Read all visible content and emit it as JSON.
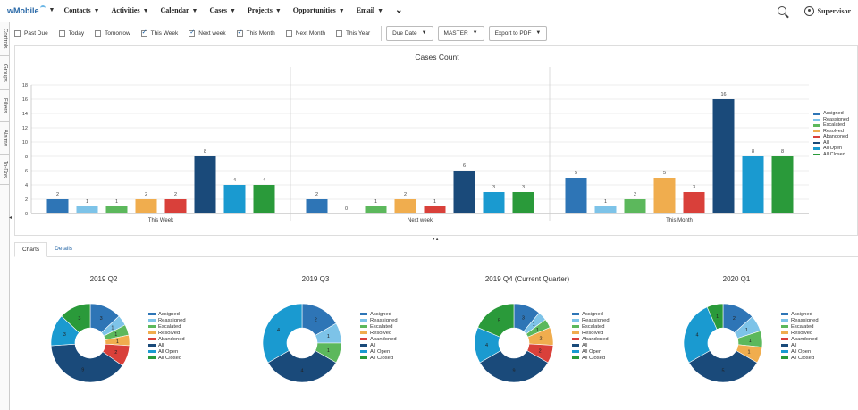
{
  "app": {
    "logo": "wMobile",
    "user": "Supervisor"
  },
  "nav": [
    "Contacts",
    "Activities",
    "Calendar",
    "Cases",
    "Projects",
    "Opportunities",
    "Email"
  ],
  "left_tabs": [
    "Controls",
    "Groups",
    "Filters",
    "Alarms",
    "To-Dos"
  ],
  "filters": [
    {
      "label": "Past Due",
      "checked": false
    },
    {
      "label": "Today",
      "checked": false
    },
    {
      "label": "Tomorrow",
      "checked": false
    },
    {
      "label": "This Week",
      "checked": true
    },
    {
      "label": "Next week",
      "checked": true
    },
    {
      "label": "This Month",
      "checked": true
    },
    {
      "label": "Next Month",
      "checked": false
    },
    {
      "label": "This Year",
      "checked": false
    }
  ],
  "dropdowns": {
    "date": "Due Date",
    "master": "MASTER",
    "export": "Export to PDF"
  },
  "colors": {
    "Assigned": "#2e75b6",
    "Reassigned": "#7dc3e8",
    "Escalated": "#5cb85c",
    "Resolved": "#f0ad4e",
    "Abandoned": "#d9403a",
    "All": "#1a4a7a",
    "All Open": "#1a9ad0",
    "All Closed": "#2a9a3a"
  },
  "legend_items": [
    "Assigned",
    "Reassigned",
    "Escalated",
    "Resolved",
    "Abandoned",
    "All",
    "All Open",
    "All Closed"
  ],
  "chart_data": {
    "type": "bar",
    "title": "Cases Count",
    "categories": [
      "This Week",
      "Next week",
      "This Month"
    ],
    "series": [
      {
        "name": "Assigned",
        "values": [
          2,
          2,
          5
        ]
      },
      {
        "name": "Reassigned",
        "values": [
          1,
          0,
          1
        ]
      },
      {
        "name": "Escalated",
        "values": [
          1,
          1,
          2
        ]
      },
      {
        "name": "Resolved",
        "values": [
          2,
          2,
          5
        ]
      },
      {
        "name": "Abandoned",
        "values": [
          2,
          1,
          3
        ]
      },
      {
        "name": "All",
        "values": [
          8,
          6,
          16
        ]
      },
      {
        "name": "All Open",
        "values": [
          4,
          3,
          8
        ]
      },
      {
        "name": "All Closed",
        "values": [
          4,
          3,
          8
        ]
      }
    ],
    "ylim": [
      0,
      18
    ],
    "yticks": [
      0,
      2,
      4,
      6,
      8,
      10,
      12,
      14,
      16,
      18
    ],
    "grid": true,
    "legend": "right"
  },
  "tabs": [
    "Charts",
    "Details"
  ],
  "pies": [
    {
      "title": "2019 Q2",
      "slices": [
        {
          "name": "Assigned",
          "value": 3
        },
        {
          "name": "Reassigned",
          "value": 1
        },
        {
          "name": "Escalated",
          "value": 1
        },
        {
          "name": "Resolved",
          "value": 1
        },
        {
          "name": "Abandoned",
          "value": 2
        },
        {
          "name": "All",
          "value": 9
        },
        {
          "name": "All Open",
          "value": 3
        },
        {
          "name": "All Closed",
          "value": 3
        }
      ]
    },
    {
      "title": "2019 Q3",
      "slices": [
        {
          "name": "Assigned",
          "value": 2
        },
        {
          "name": "Reassigned",
          "value": 1
        },
        {
          "name": "Escalated",
          "value": 1
        },
        {
          "name": "Resolved",
          "value": 0
        },
        {
          "name": "Abandoned",
          "value": 0
        },
        {
          "name": "All",
          "value": 4
        },
        {
          "name": "All Open",
          "value": 4
        },
        {
          "name": "All Closed",
          "value": 0
        }
      ]
    },
    {
      "title": "2019 Q4 (Current Quarter)",
      "slices": [
        {
          "name": "Assigned",
          "value": 3
        },
        {
          "name": "Reassigned",
          "value": 1
        },
        {
          "name": "Escalated",
          "value": 1
        },
        {
          "name": "Resolved",
          "value": 2
        },
        {
          "name": "Abandoned",
          "value": 2
        },
        {
          "name": "All",
          "value": 9
        },
        {
          "name": "All Open",
          "value": 4
        },
        {
          "name": "All Closed",
          "value": 5
        }
      ]
    },
    {
      "title": "2020 Q1",
      "slices": [
        {
          "name": "Assigned",
          "value": 2
        },
        {
          "name": "Reassigned",
          "value": 1
        },
        {
          "name": "Escalated",
          "value": 1
        },
        {
          "name": "Resolved",
          "value": 1
        },
        {
          "name": "Abandoned",
          "value": 0
        },
        {
          "name": "All",
          "value": 5
        },
        {
          "name": "All Open",
          "value": 4
        },
        {
          "name": "All Closed",
          "value": 1
        }
      ]
    }
  ]
}
